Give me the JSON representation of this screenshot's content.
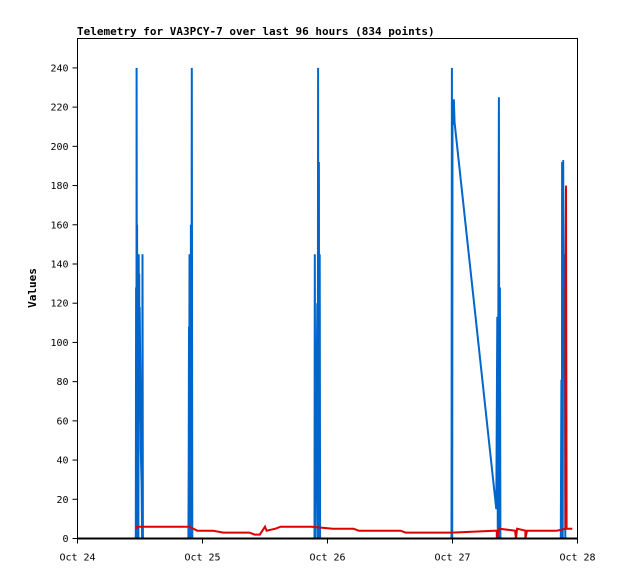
{
  "chart_data": {
    "type": "line",
    "title": "Telemetry for VA3PCY-7 over last 96 hours (834 points)",
    "xlabel": "",
    "ylabel": "Values",
    "xlim": [
      0,
      96
    ],
    "ylim": [
      0,
      255
    ],
    "x_ticks": [
      {
        "x": 0,
        "label": "Oct 24"
      },
      {
        "x": 24,
        "label": "Oct 25"
      },
      {
        "x": 48,
        "label": "Oct 26"
      },
      {
        "x": 72,
        "label": "Oct 27"
      },
      {
        "x": 96,
        "label": "Oct 28"
      }
    ],
    "y_ticks": [
      0,
      20,
      40,
      60,
      80,
      100,
      120,
      140,
      160,
      180,
      200,
      220,
      240
    ],
    "grid": false,
    "series": [
      {
        "color": "#0066cc",
        "points": [
          [
            0,
            0
          ],
          [
            11.2,
            0
          ],
          [
            11.25,
            128
          ],
          [
            11.3,
            0
          ],
          [
            11.35,
            240
          ],
          [
            11.42,
            0
          ],
          [
            11.45,
            160
          ],
          [
            11.5,
            45
          ],
          [
            11.55,
            130
          ],
          [
            11.6,
            35
          ],
          [
            11.65,
            108
          ],
          [
            11.7,
            0
          ],
          [
            11.75,
            145
          ],
          [
            11.8,
            98
          ],
          [
            11.85,
            135
          ],
          [
            11.9,
            60
          ],
          [
            11.95,
            118
          ],
          [
            12.05,
            80
          ],
          [
            12.15,
            45
          ],
          [
            12.3,
            27
          ],
          [
            12.4,
            0
          ],
          [
            12.48,
            145
          ],
          [
            12.55,
            0
          ],
          [
            21.3,
            0
          ],
          [
            21.35,
            36
          ],
          [
            21.4,
            108
          ],
          [
            21.45,
            0
          ],
          [
            21.5,
            145
          ],
          [
            21.55,
            57
          ],
          [
            21.6,
            0
          ],
          [
            21.65,
            93
          ],
          [
            21.72,
            0
          ],
          [
            21.78,
            160
          ],
          [
            21.85,
            0
          ],
          [
            21.95,
            240
          ],
          [
            22.05,
            0
          ],
          [
            45.5,
            0
          ],
          [
            45.57,
            145
          ],
          [
            45.65,
            0
          ],
          [
            46.05,
            120
          ],
          [
            46.12,
            0
          ],
          [
            46.2,
            240
          ],
          [
            46.28,
            0
          ],
          [
            46.35,
            192
          ],
          [
            46.42,
            0
          ],
          [
            46.5,
            145
          ],
          [
            46.58,
            0
          ],
          [
            71.8,
            0
          ],
          [
            71.88,
            240
          ],
          [
            71.95,
            0
          ],
          [
            72.0,
            222
          ],
          [
            72.1,
            211
          ],
          [
            72.25,
            224
          ],
          [
            72.4,
            212
          ],
          [
            80.4,
            15
          ],
          [
            80.6,
            113
          ],
          [
            80.7,
            0
          ],
          [
            80.9,
            225
          ],
          [
            81.0,
            0
          ],
          [
            81.1,
            128
          ],
          [
            81.2,
            0
          ],
          [
            92.8,
            0
          ],
          [
            92.9,
            81
          ],
          [
            93.0,
            0
          ],
          [
            93.05,
            192
          ],
          [
            93.15,
            0
          ],
          [
            93.25,
            193
          ],
          [
            93.35,
            113
          ],
          [
            93.45,
            128
          ],
          [
            93.55,
            145
          ],
          [
            93.65,
            0
          ]
        ]
      },
      {
        "color": "#dd0000",
        "points": [
          [
            11.25,
            5
          ],
          [
            11.4,
            6
          ],
          [
            21.5,
            6
          ],
          [
            23,
            4
          ],
          [
            26,
            4
          ],
          [
            28,
            3
          ],
          [
            33,
            3
          ],
          [
            34,
            2
          ],
          [
            35,
            2
          ],
          [
            36,
            6
          ],
          [
            36.3,
            4
          ],
          [
            38,
            5
          ],
          [
            39,
            6
          ],
          [
            45,
            6
          ],
          [
            49,
            5
          ],
          [
            53,
            5
          ],
          [
            54,
            4
          ],
          [
            62,
            4
          ],
          [
            63,
            3
          ],
          [
            72,
            3
          ],
          [
            80,
            4
          ],
          [
            80.5,
            4
          ],
          [
            80.5,
            0
          ],
          [
            81,
            5
          ],
          [
            84,
            4
          ],
          [
            84.2,
            -2
          ],
          [
            84.4,
            5
          ],
          [
            86,
            4
          ],
          [
            86,
            0
          ],
          [
            86.3,
            4
          ],
          [
            92,
            4
          ],
          [
            93.7,
            5
          ],
          [
            93.7,
            120
          ],
          [
            93.8,
            180
          ],
          [
            93.9,
            5
          ],
          [
            95,
            5
          ]
        ]
      },
      {
        "color": "#000000",
        "points": [
          [
            0,
            0
          ],
          [
            96,
            0
          ]
        ]
      }
    ]
  }
}
